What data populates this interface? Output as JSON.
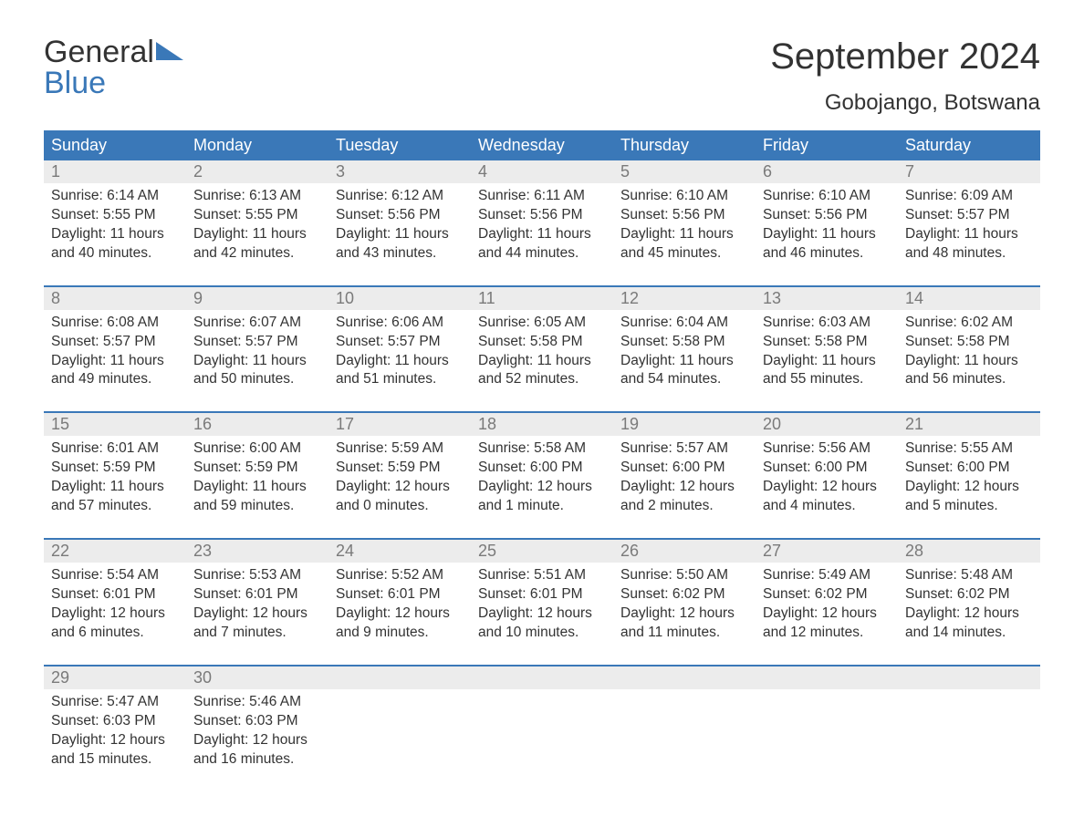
{
  "brand": {
    "line1": "General",
    "line2": "Blue"
  },
  "title": "September 2024",
  "location": "Gobojango, Botswana",
  "colors": {
    "header_bg": "#3a78b8",
    "header_text": "#ffffff",
    "daynum_bg": "#ececec",
    "daynum_text": "#7a7a7a",
    "body_text": "#333333",
    "separator": "#3a78b8",
    "background": "#ffffff"
  },
  "dayNames": [
    "Sunday",
    "Monday",
    "Tuesday",
    "Wednesday",
    "Thursday",
    "Friday",
    "Saturday"
  ],
  "weeks": [
    [
      {
        "n": "1",
        "sr": "Sunrise: 6:14 AM",
        "ss": "Sunset: 5:55 PM",
        "d1": "Daylight: 11 hours",
        "d2": "and 40 minutes."
      },
      {
        "n": "2",
        "sr": "Sunrise: 6:13 AM",
        "ss": "Sunset: 5:55 PM",
        "d1": "Daylight: 11 hours",
        "d2": "and 42 minutes."
      },
      {
        "n": "3",
        "sr": "Sunrise: 6:12 AM",
        "ss": "Sunset: 5:56 PM",
        "d1": "Daylight: 11 hours",
        "d2": "and 43 minutes."
      },
      {
        "n": "4",
        "sr": "Sunrise: 6:11 AM",
        "ss": "Sunset: 5:56 PM",
        "d1": "Daylight: 11 hours",
        "d2": "and 44 minutes."
      },
      {
        "n": "5",
        "sr": "Sunrise: 6:10 AM",
        "ss": "Sunset: 5:56 PM",
        "d1": "Daylight: 11 hours",
        "d2": "and 45 minutes."
      },
      {
        "n": "6",
        "sr": "Sunrise: 6:10 AM",
        "ss": "Sunset: 5:56 PM",
        "d1": "Daylight: 11 hours",
        "d2": "and 46 minutes."
      },
      {
        "n": "7",
        "sr": "Sunrise: 6:09 AM",
        "ss": "Sunset: 5:57 PM",
        "d1": "Daylight: 11 hours",
        "d2": "and 48 minutes."
      }
    ],
    [
      {
        "n": "8",
        "sr": "Sunrise: 6:08 AM",
        "ss": "Sunset: 5:57 PM",
        "d1": "Daylight: 11 hours",
        "d2": "and 49 minutes."
      },
      {
        "n": "9",
        "sr": "Sunrise: 6:07 AM",
        "ss": "Sunset: 5:57 PM",
        "d1": "Daylight: 11 hours",
        "d2": "and 50 minutes."
      },
      {
        "n": "10",
        "sr": "Sunrise: 6:06 AM",
        "ss": "Sunset: 5:57 PM",
        "d1": "Daylight: 11 hours",
        "d2": "and 51 minutes."
      },
      {
        "n": "11",
        "sr": "Sunrise: 6:05 AM",
        "ss": "Sunset: 5:58 PM",
        "d1": "Daylight: 11 hours",
        "d2": "and 52 minutes."
      },
      {
        "n": "12",
        "sr": "Sunrise: 6:04 AM",
        "ss": "Sunset: 5:58 PM",
        "d1": "Daylight: 11 hours",
        "d2": "and 54 minutes."
      },
      {
        "n": "13",
        "sr": "Sunrise: 6:03 AM",
        "ss": "Sunset: 5:58 PM",
        "d1": "Daylight: 11 hours",
        "d2": "and 55 minutes."
      },
      {
        "n": "14",
        "sr": "Sunrise: 6:02 AM",
        "ss": "Sunset: 5:58 PM",
        "d1": "Daylight: 11 hours",
        "d2": "and 56 minutes."
      }
    ],
    [
      {
        "n": "15",
        "sr": "Sunrise: 6:01 AM",
        "ss": "Sunset: 5:59 PM",
        "d1": "Daylight: 11 hours",
        "d2": "and 57 minutes."
      },
      {
        "n": "16",
        "sr": "Sunrise: 6:00 AM",
        "ss": "Sunset: 5:59 PM",
        "d1": "Daylight: 11 hours",
        "d2": "and 59 minutes."
      },
      {
        "n": "17",
        "sr": "Sunrise: 5:59 AM",
        "ss": "Sunset: 5:59 PM",
        "d1": "Daylight: 12 hours",
        "d2": "and 0 minutes."
      },
      {
        "n": "18",
        "sr": "Sunrise: 5:58 AM",
        "ss": "Sunset: 6:00 PM",
        "d1": "Daylight: 12 hours",
        "d2": "and 1 minute."
      },
      {
        "n": "19",
        "sr": "Sunrise: 5:57 AM",
        "ss": "Sunset: 6:00 PM",
        "d1": "Daylight: 12 hours",
        "d2": "and 2 minutes."
      },
      {
        "n": "20",
        "sr": "Sunrise: 5:56 AM",
        "ss": "Sunset: 6:00 PM",
        "d1": "Daylight: 12 hours",
        "d2": "and 4 minutes."
      },
      {
        "n": "21",
        "sr": "Sunrise: 5:55 AM",
        "ss": "Sunset: 6:00 PM",
        "d1": "Daylight: 12 hours",
        "d2": "and 5 minutes."
      }
    ],
    [
      {
        "n": "22",
        "sr": "Sunrise: 5:54 AM",
        "ss": "Sunset: 6:01 PM",
        "d1": "Daylight: 12 hours",
        "d2": "and 6 minutes."
      },
      {
        "n": "23",
        "sr": "Sunrise: 5:53 AM",
        "ss": "Sunset: 6:01 PM",
        "d1": "Daylight: 12 hours",
        "d2": "and 7 minutes."
      },
      {
        "n": "24",
        "sr": "Sunrise: 5:52 AM",
        "ss": "Sunset: 6:01 PM",
        "d1": "Daylight: 12 hours",
        "d2": "and 9 minutes."
      },
      {
        "n": "25",
        "sr": "Sunrise: 5:51 AM",
        "ss": "Sunset: 6:01 PM",
        "d1": "Daylight: 12 hours",
        "d2": "and 10 minutes."
      },
      {
        "n": "26",
        "sr": "Sunrise: 5:50 AM",
        "ss": "Sunset: 6:02 PM",
        "d1": "Daylight: 12 hours",
        "d2": "and 11 minutes."
      },
      {
        "n": "27",
        "sr": "Sunrise: 5:49 AM",
        "ss": "Sunset: 6:02 PM",
        "d1": "Daylight: 12 hours",
        "d2": "and 12 minutes."
      },
      {
        "n": "28",
        "sr": "Sunrise: 5:48 AM",
        "ss": "Sunset: 6:02 PM",
        "d1": "Daylight: 12 hours",
        "d2": "and 14 minutes."
      }
    ],
    [
      {
        "n": "29",
        "sr": "Sunrise: 5:47 AM",
        "ss": "Sunset: 6:03 PM",
        "d1": "Daylight: 12 hours",
        "d2": "and 15 minutes."
      },
      {
        "n": "30",
        "sr": "Sunrise: 5:46 AM",
        "ss": "Sunset: 6:03 PM",
        "d1": "Daylight: 12 hours",
        "d2": "and 16 minutes."
      },
      {
        "n": "",
        "sr": "",
        "ss": "",
        "d1": "",
        "d2": ""
      },
      {
        "n": "",
        "sr": "",
        "ss": "",
        "d1": "",
        "d2": ""
      },
      {
        "n": "",
        "sr": "",
        "ss": "",
        "d1": "",
        "d2": ""
      },
      {
        "n": "",
        "sr": "",
        "ss": "",
        "d1": "",
        "d2": ""
      },
      {
        "n": "",
        "sr": "",
        "ss": "",
        "d1": "",
        "d2": ""
      }
    ]
  ]
}
